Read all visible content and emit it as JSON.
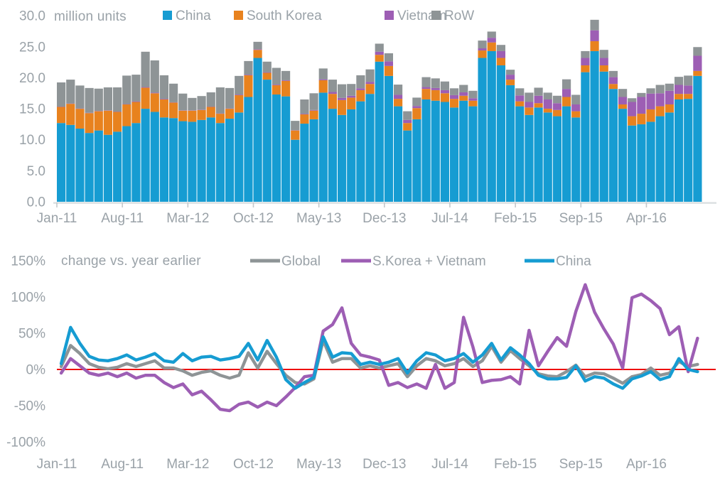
{
  "top_chart": {
    "title": "million units",
    "y_axis_labels": [
      "30.0",
      "25.0",
      "20.0",
      "15.0",
      "10.0",
      "5.0",
      "0.0"
    ],
    "y_axis_values": [
      30,
      25,
      20,
      15,
      10,
      5,
      0
    ],
    "x_axis_labels": [
      "Jan-11",
      "Aug-11",
      "Mar-12",
      "Oct-12",
      "May-13",
      "Dec-13",
      "Jul-14",
      "Feb-15",
      "Sep-15",
      "Apr-16"
    ],
    "legend": [
      {
        "label": "China",
        "color": "#169CD2"
      },
      {
        "label": "South Korea",
        "color": "#E8821E"
      },
      {
        "label": "Vietnam",
        "color": "#9D5EB4"
      },
      {
        "label": "RoW",
        "color": "#8E9496"
      }
    ]
  },
  "bottom_chart": {
    "title": "change vs. year earlier",
    "y_axis_labels": [
      "150%",
      "100%",
      "50%",
      "0%",
      "-50%",
      "-100%"
    ],
    "y_axis_values": [
      150,
      100,
      50,
      0,
      -50,
      -100
    ],
    "x_axis_labels": [
      "Jan-11",
      "Aug-11",
      "Mar-12",
      "Oct-12",
      "May-13",
      "Dec-13",
      "Jul-14",
      "Feb-15",
      "Sep-15",
      "Apr-16"
    ],
    "legend": [
      {
        "label": "Global",
        "color": "#8E9496"
      },
      {
        "label": "S.Korea + Vietnam",
        "color": "#9D5EB4"
      },
      {
        "label": "China",
        "color": "#169CD2"
      }
    ],
    "zero_line_color": "#EE0E0E"
  },
  "colors": {
    "china_blue": "#169CD2",
    "korea_orange": "#E8821E",
    "vietnam_purple": "#9D5EB4",
    "row_gray": "#8E9496",
    "axis_text": "#9aa2a8",
    "axis_line": "#d9dddf",
    "tick": "#c4c9cc",
    "zero_line_red": "#EE0E0E"
  },
  "chart_data": [
    {
      "type": "bar",
      "stacked": true,
      "title": "million units",
      "ylabel": "million units",
      "ylim": [
        0,
        30
      ],
      "tick_indices": [
        0,
        7,
        14,
        21,
        28,
        35,
        42,
        49,
        56,
        63
      ],
      "months": [
        "Jan-11",
        "Feb-11",
        "Mar-11",
        "Apr-11",
        "May-11",
        "Jun-11",
        "Jul-11",
        "Aug-11",
        "Sep-11",
        "Oct-11",
        "Nov-11",
        "Dec-11",
        "Jan-12",
        "Feb-12",
        "Mar-12",
        "Apr-12",
        "May-12",
        "Jun-12",
        "Jul-12",
        "Aug-12",
        "Sep-12",
        "Oct-12",
        "Nov-12",
        "Dec-12",
        "Jan-13",
        "Feb-13",
        "Mar-13",
        "Apr-13",
        "May-13",
        "Jun-13",
        "Jul-13",
        "Aug-13",
        "Sep-13",
        "Oct-13",
        "Nov-13",
        "Dec-13",
        "Jan-14",
        "Feb-14",
        "Mar-14",
        "Apr-14",
        "May-14",
        "Jun-14",
        "Jul-14",
        "Aug-14",
        "Sep-14",
        "Oct-14",
        "Nov-14",
        "Dec-14",
        "Jan-15",
        "Feb-15",
        "Mar-15",
        "Apr-15",
        "May-15",
        "Jun-15",
        "Jul-15",
        "Aug-15",
        "Sep-15",
        "Oct-15",
        "Nov-15",
        "Dec-15",
        "Jan-16",
        "Feb-16",
        "Mar-16",
        "Apr-16",
        "May-16",
        "Jun-16",
        "Jul-16",
        "Aug-16",
        "Sep-16"
      ],
      "series": [
        {
          "name": "China",
          "color": "#169CD2",
          "values": [
            12.7,
            12.4,
            11.8,
            11.1,
            11.5,
            10.8,
            11.3,
            12.2,
            12.7,
            15.0,
            14.5,
            13.6,
            13.5,
            13.0,
            12.9,
            13.2,
            13.6,
            12.7,
            13.4,
            14.4,
            16.9,
            23.2,
            19.7,
            17.3,
            17.0,
            10.0,
            12.6,
            13.3,
            17.6,
            15.0,
            14.0,
            14.9,
            16.2,
            17.4,
            22.6,
            20.3,
            15.4,
            11.5,
            13.3,
            16.5,
            16.3,
            16.1,
            15.2,
            16.3,
            15.4,
            23.2,
            24.3,
            22.0,
            18.8,
            15.4,
            14.0,
            15.2,
            14.4,
            13.8,
            15.4,
            13.6,
            20.9,
            24.3,
            21.0,
            18.2,
            15.0,
            12.3,
            12.5,
            12.9,
            13.8,
            14.4,
            16.5,
            16.6,
            20.3
          ]
        },
        {
          "name": "South Korea",
          "color": "#E8821E",
          "values": [
            2.6,
            3.4,
            3.2,
            3.2,
            3.1,
            3.9,
            3.2,
            3.5,
            3.4,
            3.4,
            3.0,
            2.9,
            2.5,
            1.7,
            1.8,
            1.6,
            1.7,
            1.5,
            1.6,
            2.8,
            3.5,
            1.3,
            1.1,
            1.5,
            2.5,
            1.5,
            1.5,
            1.4,
            2.0,
            2.4,
            2.4,
            1.9,
            1.8,
            1.6,
            1.1,
            1.6,
            1.2,
            1.2,
            1.8,
            1.7,
            1.7,
            1.4,
            1.4,
            0.8,
            0.9,
            1.2,
            1.4,
            1.2,
            0.9,
            0.8,
            1.2,
            0.7,
            0.6,
            1.0,
            1.5,
            1.0,
            1.1,
            1.6,
            1.0,
            0.8,
            0.7,
            1.5,
            1.7,
            2.0,
            1.6,
            1.3,
            0.9,
            0.8,
            0.8
          ]
        },
        {
          "name": "Vietnam",
          "color": "#9D5EB4",
          "values": [
            0.05,
            0.05,
            0.05,
            0.05,
            0.05,
            0.05,
            0.05,
            0.05,
            0.1,
            0.1,
            0.1,
            0.1,
            0.05,
            0.05,
            0.05,
            0.05,
            0.05,
            0.05,
            0.05,
            0.1,
            0.1,
            0.1,
            0.1,
            0.1,
            0.1,
            0.05,
            0.1,
            0.1,
            0.15,
            0.3,
            0.35,
            0.3,
            0.3,
            0.35,
            0.5,
            0.75,
            0.65,
            0.5,
            0.35,
            0.3,
            0.35,
            0.5,
            0.6,
            0.55,
            0.4,
            0.35,
            0.75,
            1.1,
            0.8,
            0.95,
            0.9,
            1.2,
            1.5,
            1.1,
            1.3,
            1.1,
            1.2,
            1.75,
            1.2,
            1.1,
            1.2,
            2.3,
            2.7,
            2.55,
            2.1,
            2.2,
            1.45,
            1.35,
            2.45
          ]
        },
        {
          "name": "RoW",
          "color": "#8E9496",
          "values": [
            3.9,
            3.85,
            3.7,
            4.0,
            3.6,
            3.7,
            3.9,
            4.6,
            4.3,
            5.7,
            5.2,
            3.8,
            3.0,
            2.7,
            2.0,
            2.2,
            2.3,
            4.2,
            3.3,
            3.0,
            2.2,
            1.2,
            1.7,
            2.7,
            1.5,
            1.5,
            2.3,
            2.7,
            1.75,
            2.0,
            2.2,
            1.9,
            2.1,
            2.0,
            1.3,
            1.3,
            1.65,
            1.4,
            1.35,
            1.6,
            1.55,
            1.4,
            1.1,
            1.2,
            1.2,
            1.25,
            1.0,
            1.0,
            0.8,
            1.15,
            1.5,
            1.3,
            1.1,
            1.2,
            1.55,
            1.55,
            1.1,
            1.7,
            1.3,
            1.0,
            1.3,
            0.6,
            0.65,
            0.85,
            1.35,
            1.15,
            1.3,
            1.6,
            1.4
          ]
        }
      ]
    },
    {
      "type": "line",
      "title": "change vs. year earlier",
      "ylabel": "% change vs. year earlier",
      "ylim": [
        -100,
        150
      ],
      "zero_line": true,
      "tick_indices": [
        0,
        7,
        14,
        21,
        28,
        35,
        42,
        49,
        56,
        63
      ],
      "months": [
        "Jan-11",
        "Feb-11",
        "Mar-11",
        "Apr-11",
        "May-11",
        "Jun-11",
        "Jul-11",
        "Aug-11",
        "Sep-11",
        "Oct-11",
        "Nov-11",
        "Dec-11",
        "Jan-12",
        "Feb-12",
        "Mar-12",
        "Apr-12",
        "May-12",
        "Jun-12",
        "Jul-12",
        "Aug-12",
        "Sep-12",
        "Oct-12",
        "Nov-12",
        "Dec-12",
        "Jan-13",
        "Feb-13",
        "Mar-13",
        "Apr-13",
        "May-13",
        "Jun-13",
        "Jul-13",
        "Aug-13",
        "Sep-13",
        "Oct-13",
        "Nov-13",
        "Dec-13",
        "Jan-14",
        "Feb-14",
        "Mar-14",
        "Apr-14",
        "May-14",
        "Jun-14",
        "Jul-14",
        "Aug-14",
        "Sep-14",
        "Oct-14",
        "Nov-14",
        "Dec-14",
        "Jan-15",
        "Feb-15",
        "Mar-15",
        "Apr-15",
        "May-15",
        "Jun-15",
        "Jul-15",
        "Aug-15",
        "Sep-15",
        "Oct-15",
        "Nov-15",
        "Dec-15",
        "Jan-16",
        "Feb-16",
        "Mar-16",
        "Apr-16",
        "May-16",
        "Jun-16",
        "Jul-16",
        "Aug-16",
        "Sep-16"
      ],
      "series": [
        {
          "name": "Global",
          "color": "#8E9496",
          "values": [
            4,
            33,
            22,
            8,
            3,
            1,
            3,
            8,
            4,
            8,
            12,
            2,
            2,
            -2,
            -8,
            -4,
            -2,
            -8,
            -12,
            -8,
            23,
            2,
            25,
            8,
            -8,
            -18,
            -20,
            -13,
            40,
            10,
            15,
            15,
            2,
            5,
            2,
            5,
            8,
            -10,
            5,
            15,
            12,
            5,
            8,
            15,
            4,
            12,
            32,
            10,
            26,
            15,
            5,
            -6,
            -9,
            -10,
            -3,
            6,
            -10,
            -5,
            -6,
            -12,
            -19,
            -10,
            -7,
            2,
            -8,
            -5,
            11,
            4,
            7
          ]
        },
        {
          "name": "S.Korea + Vietnam",
          "color": "#9D5EB4",
          "values": [
            -5,
            15,
            5,
            -5,
            -8,
            -5,
            -10,
            -5,
            -12,
            -8,
            -8,
            -18,
            -25,
            -20,
            -35,
            -30,
            -42,
            -55,
            -57,
            -48,
            -45,
            -52,
            -45,
            -50,
            -38,
            -25,
            -10,
            -8,
            53,
            62,
            85,
            36,
            20,
            17,
            13,
            -22,
            -18,
            -25,
            -20,
            -26,
            7,
            -26,
            -18,
            72,
            31,
            -18,
            -15,
            -14,
            -10,
            -20,
            54,
            5,
            25,
            44,
            32,
            80,
            117,
            79,
            56,
            35,
            2,
            99,
            104,
            95,
            84,
            48,
            59,
            -3,
            43
          ]
        },
        {
          "name": "China",
          "color": "#169CD2",
          "values": [
            8,
            58,
            36,
            18,
            13,
            12,
            15,
            20,
            13,
            17,
            22,
            12,
            10,
            22,
            12,
            17,
            18,
            13,
            15,
            18,
            36,
            13,
            40,
            17,
            -14,
            -26,
            -18,
            -11,
            45,
            17,
            23,
            22,
            7,
            10,
            7,
            10,
            15,
            -5,
            12,
            23,
            20,
            12,
            15,
            22,
            10,
            20,
            36,
            13,
            30,
            20,
            8,
            -8,
            -13,
            -13,
            -11,
            5,
            -16,
            -10,
            -12,
            -20,
            -26,
            -13,
            -9,
            -3,
            -14,
            -10,
            15,
            0,
            -3
          ]
        }
      ]
    }
  ]
}
